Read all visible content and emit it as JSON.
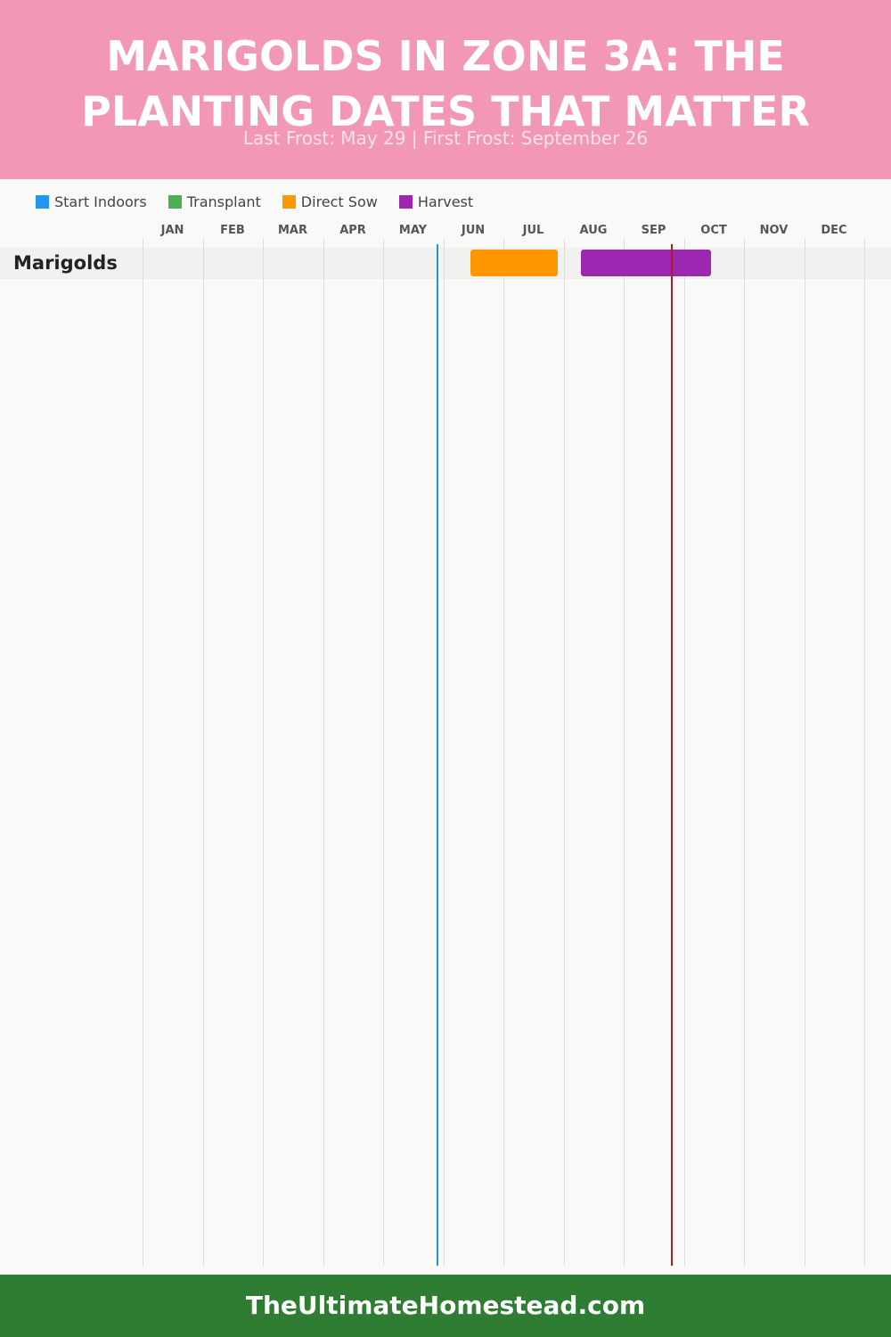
{
  "header": {
    "title_line1": "MARIGOLDS IN ZONE 3A: THE",
    "title_line2": "PLANTING DATES THAT MATTER",
    "subtitle": "Last Frost: May 29 | First Frost: September 26",
    "bg_color": "#f297b4"
  },
  "footer": {
    "text": "TheUltimateHomestead.com",
    "bg_color": "#2e7d32"
  },
  "chart_data": {
    "type": "gantt",
    "months": [
      "JAN",
      "FEB",
      "MAR",
      "APR",
      "MAY",
      "JUN",
      "JUL",
      "AUG",
      "SEP",
      "OCT",
      "NOV",
      "DEC"
    ],
    "legend": [
      {
        "label": "Start Indoors",
        "color": "#2196f3"
      },
      {
        "label": "Transplant",
        "color": "#4caf50"
      },
      {
        "label": "Direct Sow",
        "color": "#ff9800"
      },
      {
        "label": "Harvest",
        "color": "#9c27b0"
      }
    ],
    "rows": [
      {
        "crop": "Marigolds",
        "bars": [
          {
            "type": "Direct Sow",
            "start": "Jun 15",
            "end": "Jul 29",
            "color": "#ff9800"
          },
          {
            "type": "Harvest",
            "start": "Aug 10",
            "end": "Oct 15",
            "color": "#9c27b0"
          }
        ]
      }
    ],
    "frost_lines": [
      {
        "date": "May 29",
        "color": "#2196c9"
      },
      {
        "date": "Sep 26",
        "color": "#b71c1c"
      }
    ]
  }
}
